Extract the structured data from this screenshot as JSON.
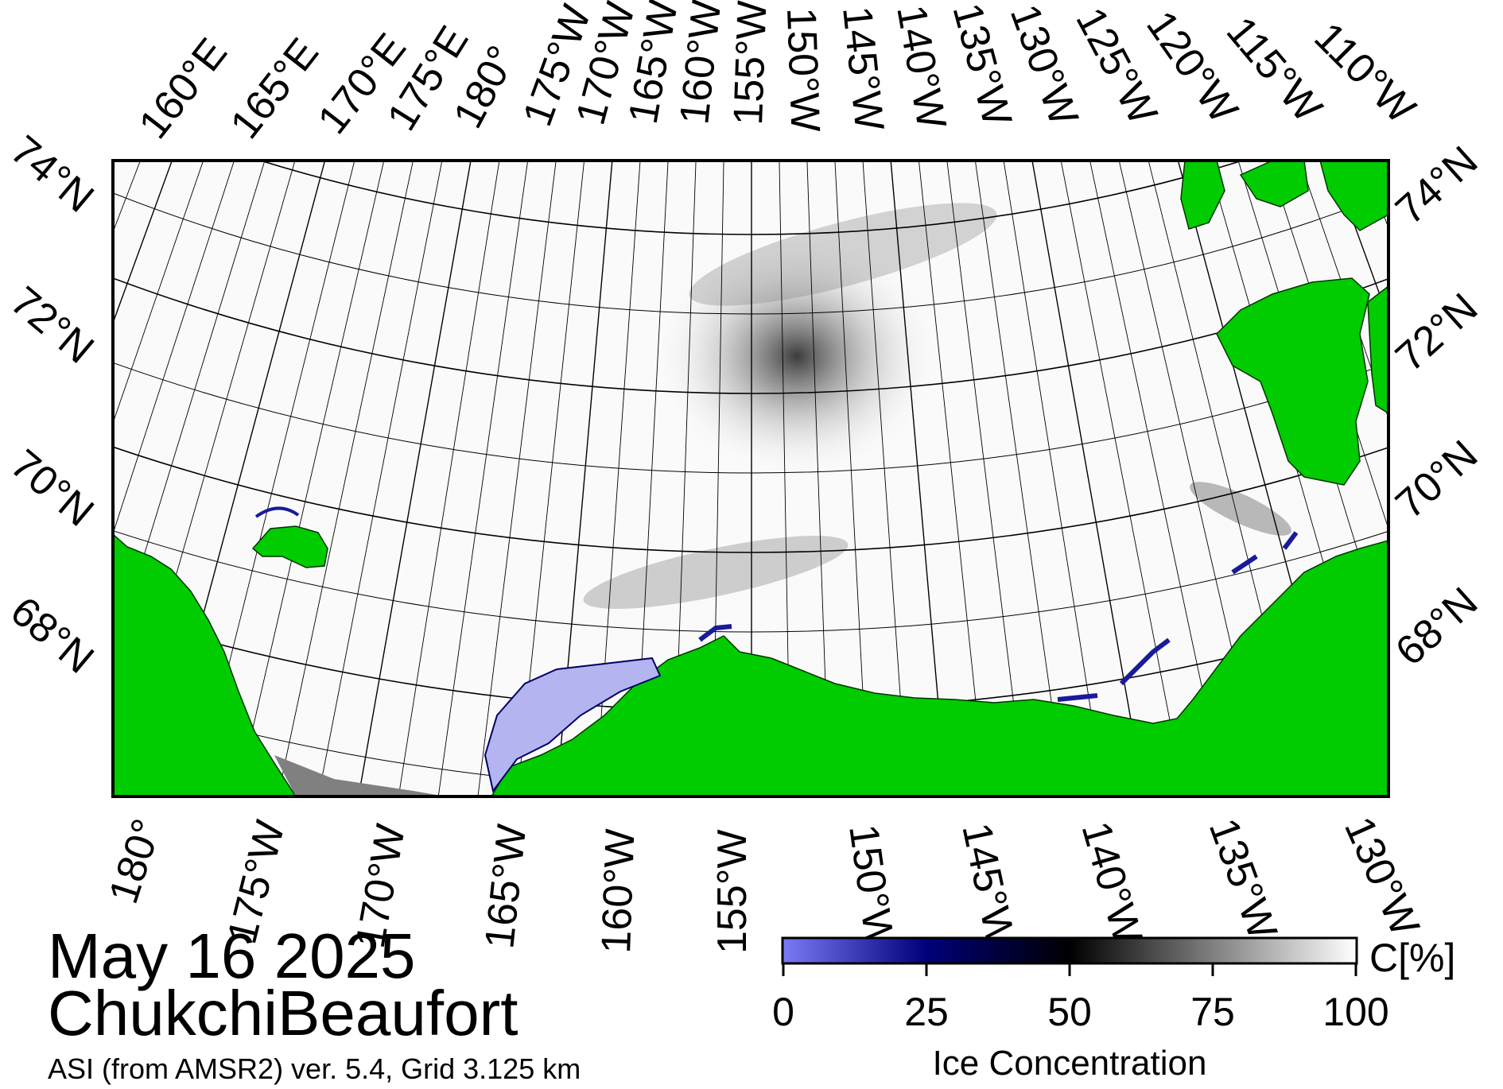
{
  "map": {
    "date": "May 16 2025",
    "region": "ChukchiBeaufort",
    "source": "ASI (from AMSR2) ver. 5.4,  Grid 3.125 km",
    "land_color": "#00cc00",
    "missing_color": "#808080",
    "low_ice_color": "#b4b4f0"
  },
  "top_labels": [
    "160°E",
    "165°E",
    "170°E",
    "175°E",
    "180°",
    "175°W",
    "170°W",
    "165°W",
    "160°W",
    "155°W",
    "150°W",
    "145°W",
    "140°W",
    "135°W",
    "130°W",
    "125°W",
    "120°W",
    "115°W",
    "110°W"
  ],
  "bottom_labels": [
    "180°",
    "175°W",
    "170°W",
    "165°W",
    "160°W",
    "155°W",
    "150°W",
    "145°W",
    "140°W",
    "135°W",
    "130°W"
  ],
  "left_lat_labels": [
    "74°N",
    "72°N",
    "70°N",
    "68°N"
  ],
  "right_lat_labels": [
    "74°N",
    "72°N",
    "70°N",
    "68°N"
  ],
  "colorbar": {
    "ticks": [
      "0",
      "25",
      "50",
      "75",
      "100"
    ],
    "unit": "C[%]",
    "title": "Ice Concentration",
    "stops": [
      "#7b7bf5",
      "#00007a",
      "#000000",
      "#ffffff"
    ]
  }
}
